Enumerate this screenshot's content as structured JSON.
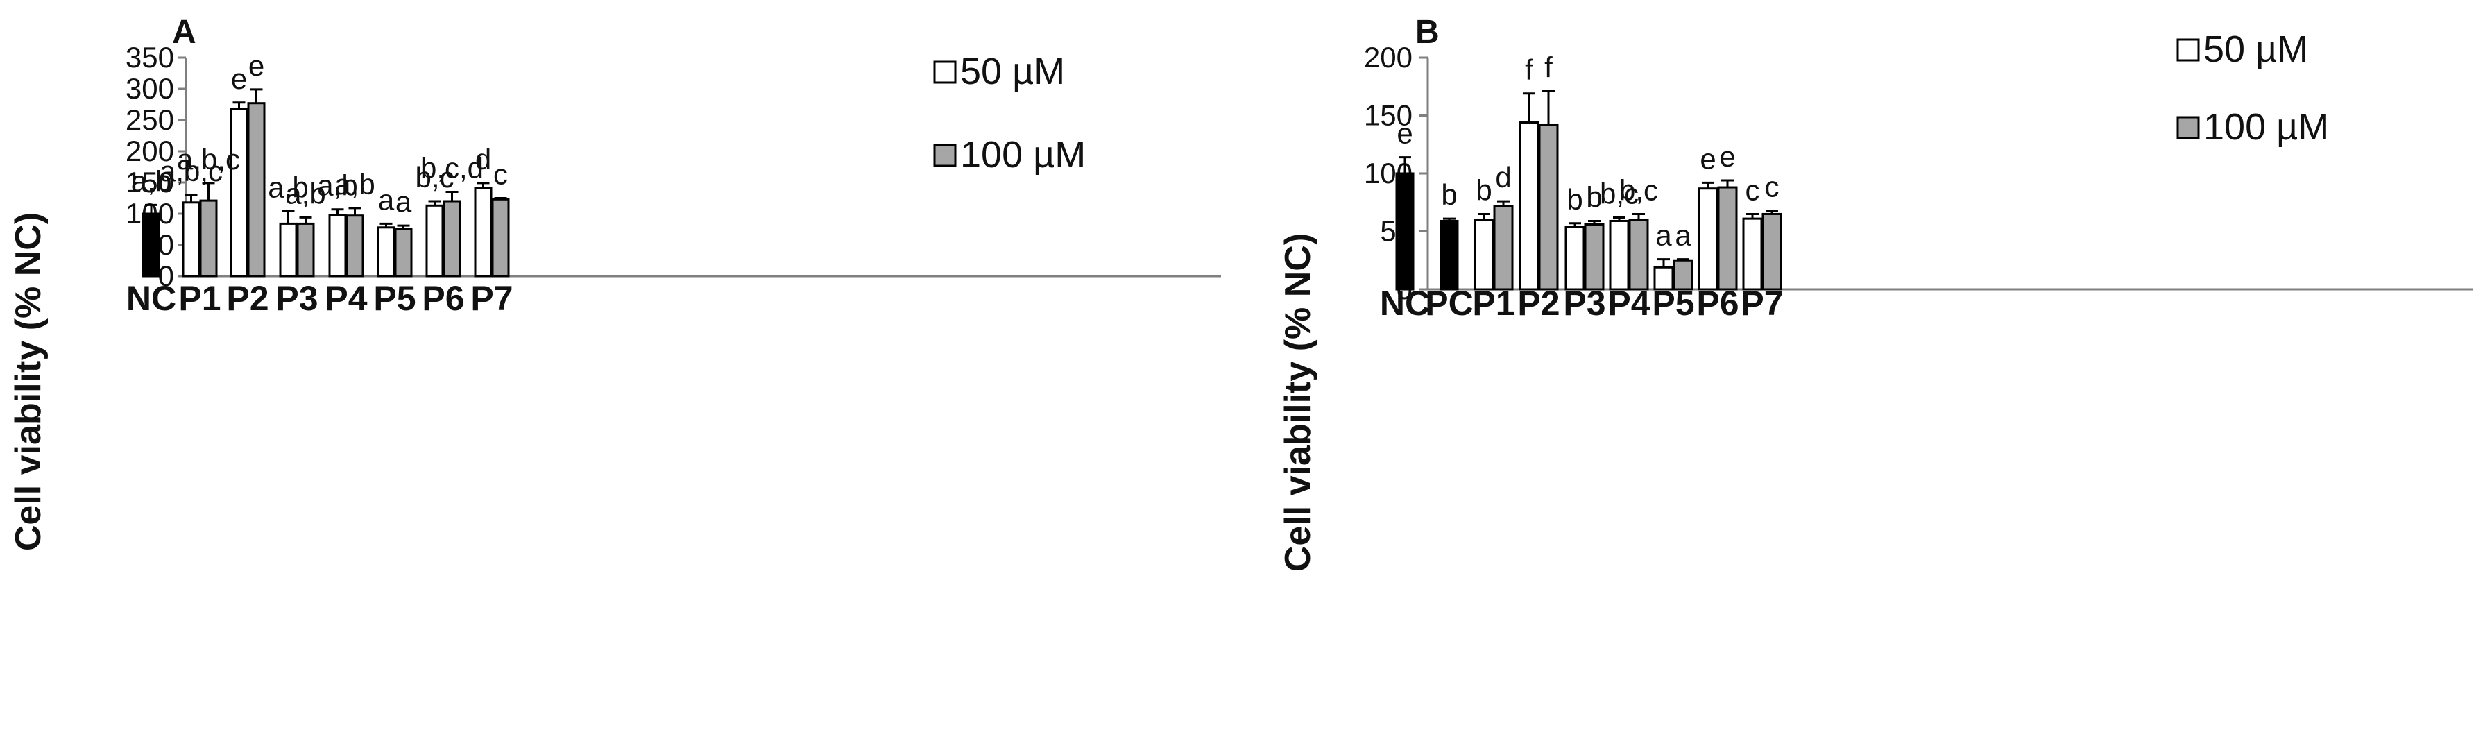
{
  "colors": {
    "nc": "#000000",
    "c50": "#ffffff",
    "c100": "#a6a6a6",
    "axis": "#7f7f7f",
    "stroke": "#000000"
  },
  "chart_data": [
    {
      "type": "bar",
      "panel": "A",
      "ylabel": "Cell viability (% NC)",
      "xlabel": "",
      "ylim": [
        0,
        350
      ],
      "yticks": [
        0,
        50,
        100,
        150,
        200,
        250,
        300,
        350
      ],
      "legend": [
        "50 µM",
        "100 µM"
      ],
      "legend_position": "top-right",
      "categories": [
        "NC",
        "P1",
        "P2",
        "P3",
        "P4",
        "P5",
        "P6",
        "P7"
      ],
      "control": {
        "category": "NC",
        "value": 100,
        "error": 14,
        "label": "a,b"
      },
      "series": [
        {
          "name": "50 µM",
          "values": [
            null,
            118,
            268,
            84,
            98,
            78,
            113,
            141
          ],
          "errors": [
            null,
            12,
            10,
            20,
            9,
            6,
            7,
            8
          ],
          "labels": [
            null,
            "a,b,c",
            "e",
            "a,b",
            "a,b",
            "a",
            "b,c",
            "d"
          ]
        },
        {
          "name": "100 µM",
          "values": [
            null,
            121,
            277,
            84,
            97,
            75,
            120,
            123
          ],
          "errors": [
            null,
            28,
            22,
            10,
            12,
            6,
            15,
            2
          ],
          "labels": [
            null,
            "a,b,c",
            "e",
            "a,b",
            "a,b",
            "a",
            "b,c,d",
            "c"
          ]
        }
      ]
    },
    {
      "type": "bar",
      "panel": "B",
      "ylabel": "Cell viability (% NC)",
      "xlabel": "",
      "ylim": [
        0,
        200
      ],
      "yticks": [
        0,
        50,
        100,
        150,
        200
      ],
      "legend": [
        "50 µM",
        "100 µM"
      ],
      "legend_position": "top-right",
      "categories": [
        "NC",
        "PC",
        "P1",
        "P2",
        "P3",
        "P4",
        "P5",
        "P6",
        "P7"
      ],
      "controls": [
        {
          "category": "NC",
          "value": 100,
          "error": 14,
          "label": "e"
        },
        {
          "category": "PC",
          "value": 59,
          "error": 2,
          "label": "b"
        }
      ],
      "series": [
        {
          "name": "50 µM",
          "values": [
            null,
            null,
            60,
            144,
            54,
            59,
            19,
            87,
            61
          ],
          "errors": [
            null,
            null,
            5,
            25,
            3,
            3,
            7,
            5,
            4
          ],
          "labels": [
            null,
            null,
            "b",
            "f",
            "b",
            "b,c",
            "a",
            "e",
            "c"
          ]
        },
        {
          "name": "100 µM",
          "values": [
            null,
            null,
            72,
            142,
            56,
            60,
            25,
            88,
            65
          ],
          "errors": [
            null,
            null,
            4,
            29,
            3,
            5,
            1,
            6,
            3
          ],
          "labels": [
            null,
            null,
            "d",
            "f",
            "b",
            "b,c",
            "a",
            "e",
            "c"
          ]
        }
      ]
    }
  ]
}
